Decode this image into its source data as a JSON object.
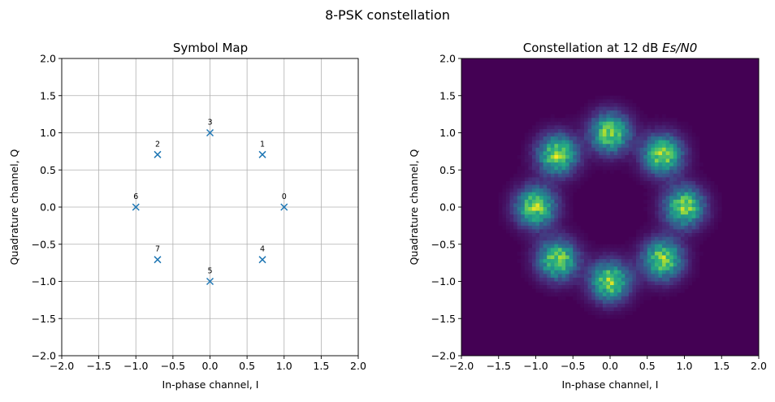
{
  "figure": {
    "suptitle": "8-PSK constellation"
  },
  "chart_data": [
    {
      "type": "scatter",
      "title": "Symbol Map",
      "xlabel": "In-phase channel, I",
      "ylabel": "Quadrature channel, Q",
      "xlim": [
        -2.0,
        2.0
      ],
      "ylim": [
        -2.0,
        2.0
      ],
      "ticks": [
        "−2.0",
        "−1.5",
        "−1.0",
        "−0.5",
        "0.0",
        "0.5",
        "1.0",
        "1.5",
        "2.0"
      ],
      "tick_values": [
        -2.0,
        -1.5,
        -1.0,
        -0.5,
        0.0,
        0.5,
        1.0,
        1.5,
        2.0
      ],
      "grid": true,
      "marker": "x",
      "color": "#1f77b4",
      "points": [
        {
          "label": "0",
          "x": 1.0,
          "y": 0.0
        },
        {
          "label": "1",
          "x": 0.7071,
          "y": 0.7071
        },
        {
          "label": "2",
          "x": -0.7071,
          "y": 0.7071
        },
        {
          "label": "3",
          "x": 0.0,
          "y": 1.0
        },
        {
          "label": "4",
          "x": 0.7071,
          "y": -0.7071
        },
        {
          "label": "5",
          "x": 0.0,
          "y": -1.0
        },
        {
          "label": "6",
          "x": -1.0,
          "y": 0.0
        },
        {
          "label": "7",
          "x": -0.7071,
          "y": -0.7071
        }
      ]
    },
    {
      "type": "heatmap",
      "title_text": "Constellation at 12 dB ",
      "title_math": "Es/N0",
      "xlabel": "In-phase channel, I",
      "ylabel": "Quadrature channel, Q",
      "xlim": [
        -2.0,
        2.0
      ],
      "ylim": [
        -2.0,
        2.0
      ],
      "ticks": [
        "−2.0",
        "−1.5",
        "−1.0",
        "−0.5",
        "0.0",
        "0.5",
        "1.0",
        "1.5",
        "2.0"
      ],
      "tick_values": [
        -2.0,
        -1.5,
        -1.0,
        -0.5,
        0.0,
        0.5,
        1.0,
        1.5,
        2.0
      ],
      "colormap": "viridis",
      "background_color": "#440154",
      "bins": 80,
      "es_n0_db": 12,
      "cluster_centers": [
        [
          1.0,
          0.0
        ],
        [
          0.7071,
          0.7071
        ],
        [
          0.0,
          1.0
        ],
        [
          -0.7071,
          0.7071
        ],
        [
          -1.0,
          0.0
        ],
        [
          -0.7071,
          -0.7071
        ],
        [
          0.0,
          -1.0
        ],
        [
          0.7071,
          -0.7071
        ]
      ]
    }
  ]
}
